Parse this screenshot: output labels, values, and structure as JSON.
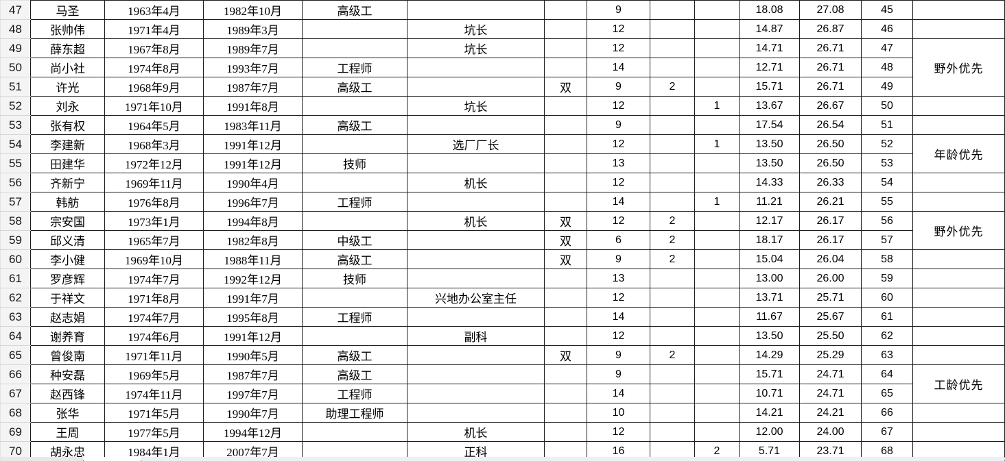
{
  "colors": {
    "grid": "#1c1c1c",
    "row_header_bg": "#f4f4f4",
    "bottom_strip_left": "#e8e8e8",
    "bottom_strip_right": "#edf1f6"
  },
  "table": {
    "rows": [
      {
        "row_no": "47",
        "name": "马圣",
        "birth": "1963年4月",
        "start": "1982年10月",
        "title": "高级工",
        "position": "",
        "shuang": "",
        "num1": "9",
        "num2": "",
        "num3": "",
        "dec1": "18.08",
        "dec2": "27.08",
        "rank": "45"
      },
      {
        "row_no": "48",
        "name": "张帅伟",
        "birth": "1971年4月",
        "start": "1989年3月",
        "title": "",
        "position": "坑长",
        "shuang": "",
        "num1": "12",
        "num2": "",
        "num3": "",
        "dec1": "14.87",
        "dec2": "26.87",
        "rank": "46"
      },
      {
        "row_no": "49",
        "name": "薛东超",
        "birth": "1967年8月",
        "start": "1989年7月",
        "title": "",
        "position": "坑长",
        "shuang": "",
        "num1": "12",
        "num2": "",
        "num3": "",
        "dec1": "14.71",
        "dec2": "26.71",
        "rank": "47"
      },
      {
        "row_no": "50",
        "name": "尚小社",
        "birth": "1974年8月",
        "start": "1993年7月",
        "title": "工程师",
        "position": "",
        "shuang": "",
        "num1": "14",
        "num2": "",
        "num3": "",
        "dec1": "12.71",
        "dec2": "26.71",
        "rank": "48"
      },
      {
        "row_no": "51",
        "name": "许光",
        "birth": "1968年9月",
        "start": "1987年7月",
        "title": "高级工",
        "position": "",
        "shuang": "双",
        "num1": "9",
        "num2": "2",
        "num3": "",
        "dec1": "15.71",
        "dec2": "26.71",
        "rank": "49"
      },
      {
        "row_no": "52",
        "name": "刘永",
        "birth": "1971年10月",
        "start": "1991年8月",
        "title": "",
        "position": "坑长",
        "shuang": "",
        "num1": "12",
        "num2": "",
        "num3": "1",
        "dec1": "13.67",
        "dec2": "26.67",
        "rank": "50"
      },
      {
        "row_no": "53",
        "name": "张有权",
        "birth": "1964年5月",
        "start": "1983年11月",
        "title": "高级工",
        "position": "",
        "shuang": "",
        "num1": "9",
        "num2": "",
        "num3": "",
        "dec1": "17.54",
        "dec2": "26.54",
        "rank": "51"
      },
      {
        "row_no": "54",
        "name": "李建新",
        "birth": "1968年3月",
        "start": "1991年12月",
        "title": "",
        "position": "选厂厂长",
        "shuang": "",
        "num1": "12",
        "num2": "",
        "num3": "1",
        "dec1": "13.50",
        "dec2": "26.50",
        "rank": "52"
      },
      {
        "row_no": "55",
        "name": "田建华",
        "birth": "1972年12月",
        "start": "1991年12月",
        "title": "技师",
        "position": "",
        "shuang": "",
        "num1": "13",
        "num2": "",
        "num3": "",
        "dec1": "13.50",
        "dec2": "26.50",
        "rank": "53"
      },
      {
        "row_no": "56",
        "name": "齐新宁",
        "birth": "1969年11月",
        "start": "1990年4月",
        "title": "",
        "position": "机长",
        "shuang": "",
        "num1": "12",
        "num2": "",
        "num3": "",
        "dec1": "14.33",
        "dec2": "26.33",
        "rank": "54"
      },
      {
        "row_no": "57",
        "name": "韩舫",
        "birth": "1976年8月",
        "start": "1996年7月",
        "title": "工程师",
        "position": "",
        "shuang": "",
        "num1": "14",
        "num2": "",
        "num3": "1",
        "dec1": "11.21",
        "dec2": "26.21",
        "rank": "55"
      },
      {
        "row_no": "58",
        "name": "宗安国",
        "birth": "1973年1月",
        "start": "1994年8月",
        "title": "",
        "position": "机长",
        "shuang": "双",
        "num1": "12",
        "num2": "2",
        "num3": "",
        "dec1": "12.17",
        "dec2": "26.17",
        "rank": "56"
      },
      {
        "row_no": "59",
        "name": "邱义清",
        "birth": "1965年7月",
        "start": "1982年8月",
        "title": "中级工",
        "position": "",
        "shuang": "双",
        "num1": "6",
        "num2": "2",
        "num3": "",
        "dec1": "18.17",
        "dec2": "26.17",
        "rank": "57"
      },
      {
        "row_no": "60",
        "name": "李小健",
        "birth": "1969年10月",
        "start": "1988年11月",
        "title": "高级工",
        "position": "",
        "shuang": "双",
        "num1": "9",
        "num2": "2",
        "num3": "",
        "dec1": "15.04",
        "dec2": "26.04",
        "rank": "58"
      },
      {
        "row_no": "61",
        "name": "罗彦辉",
        "birth": "1974年7月",
        "start": "1992年12月",
        "title": "技师",
        "position": "",
        "shuang": "",
        "num1": "13",
        "num2": "",
        "num3": "",
        "dec1": "13.00",
        "dec2": "26.00",
        "rank": "59"
      },
      {
        "row_no": "62",
        "name": "于祥文",
        "birth": "1971年8月",
        "start": "1991年7月",
        "title": "",
        "position": "兴地办公室主任",
        "shuang": "",
        "num1": "12",
        "num2": "",
        "num3": "",
        "dec1": "13.71",
        "dec2": "25.71",
        "rank": "60"
      },
      {
        "row_no": "63",
        "name": "赵志娟",
        "birth": "1974年7月",
        "start": "1995年8月",
        "title": "工程师",
        "position": "",
        "shuang": "",
        "num1": "14",
        "num2": "",
        "num3": "",
        "dec1": "11.67",
        "dec2": "25.67",
        "rank": "61"
      },
      {
        "row_no": "64",
        "name": "谢养育",
        "birth": "1974年6月",
        "start": "1991年12月",
        "title": "",
        "position": "副科",
        "shuang": "",
        "num1": "12",
        "num2": "",
        "num3": "",
        "dec1": "13.50",
        "dec2": "25.50",
        "rank": "62"
      },
      {
        "row_no": "65",
        "name": "曾俊南",
        "birth": "1971年11月",
        "start": "1990年5月",
        "title": "高级工",
        "position": "",
        "shuang": "双",
        "num1": "9",
        "num2": "2",
        "num3": "",
        "dec1": "14.29",
        "dec2": "25.29",
        "rank": "63"
      },
      {
        "row_no": "66",
        "name": "种安磊",
        "birth": "1969年5月",
        "start": "1987年7月",
        "title": "高级工",
        "position": "",
        "shuang": "",
        "num1": "9",
        "num2": "",
        "num3": "",
        "dec1": "15.71",
        "dec2": "24.71",
        "rank": "64"
      },
      {
        "row_no": "67",
        "name": "赵西锋",
        "birth": "1974年11月",
        "start": "1997年7月",
        "title": "工程师",
        "position": "",
        "shuang": "",
        "num1": "14",
        "num2": "",
        "num3": "",
        "dec1": "10.71",
        "dec2": "24.71",
        "rank": "65"
      },
      {
        "row_no": "68",
        "name": "张华",
        "birth": "1971年5月",
        "start": "1990年7月",
        "title": "助理工程师",
        "position": "",
        "shuang": "",
        "num1": "10",
        "num2": "",
        "num3": "",
        "dec1": "14.21",
        "dec2": "24.21",
        "rank": "66"
      },
      {
        "row_no": "69",
        "name": "王周",
        "birth": "1977年5月",
        "start": "1994年12月",
        "title": "",
        "position": "机长",
        "shuang": "",
        "num1": "12",
        "num2": "",
        "num3": "",
        "dec1": "12.00",
        "dec2": "24.00",
        "rank": "67"
      },
      {
        "row_no": "70",
        "name": "胡永忠",
        "birth": "1984年1月",
        "start": "2007年7月",
        "title": "",
        "position": "正科",
        "shuang": "",
        "num1": "16",
        "num2": "",
        "num3": "2",
        "dec1": "5.71",
        "dec2": "23.71",
        "rank": "68"
      }
    ],
    "priority_spans": [
      {
        "start_row": "49",
        "span": 3,
        "label": "野外优先"
      },
      {
        "start_row": "54",
        "span": 2,
        "label": "年龄优先"
      },
      {
        "start_row": "58",
        "span": 2,
        "label": "野外优先"
      },
      {
        "start_row": "66",
        "span": 2,
        "label": "工龄优先"
      }
    ]
  }
}
